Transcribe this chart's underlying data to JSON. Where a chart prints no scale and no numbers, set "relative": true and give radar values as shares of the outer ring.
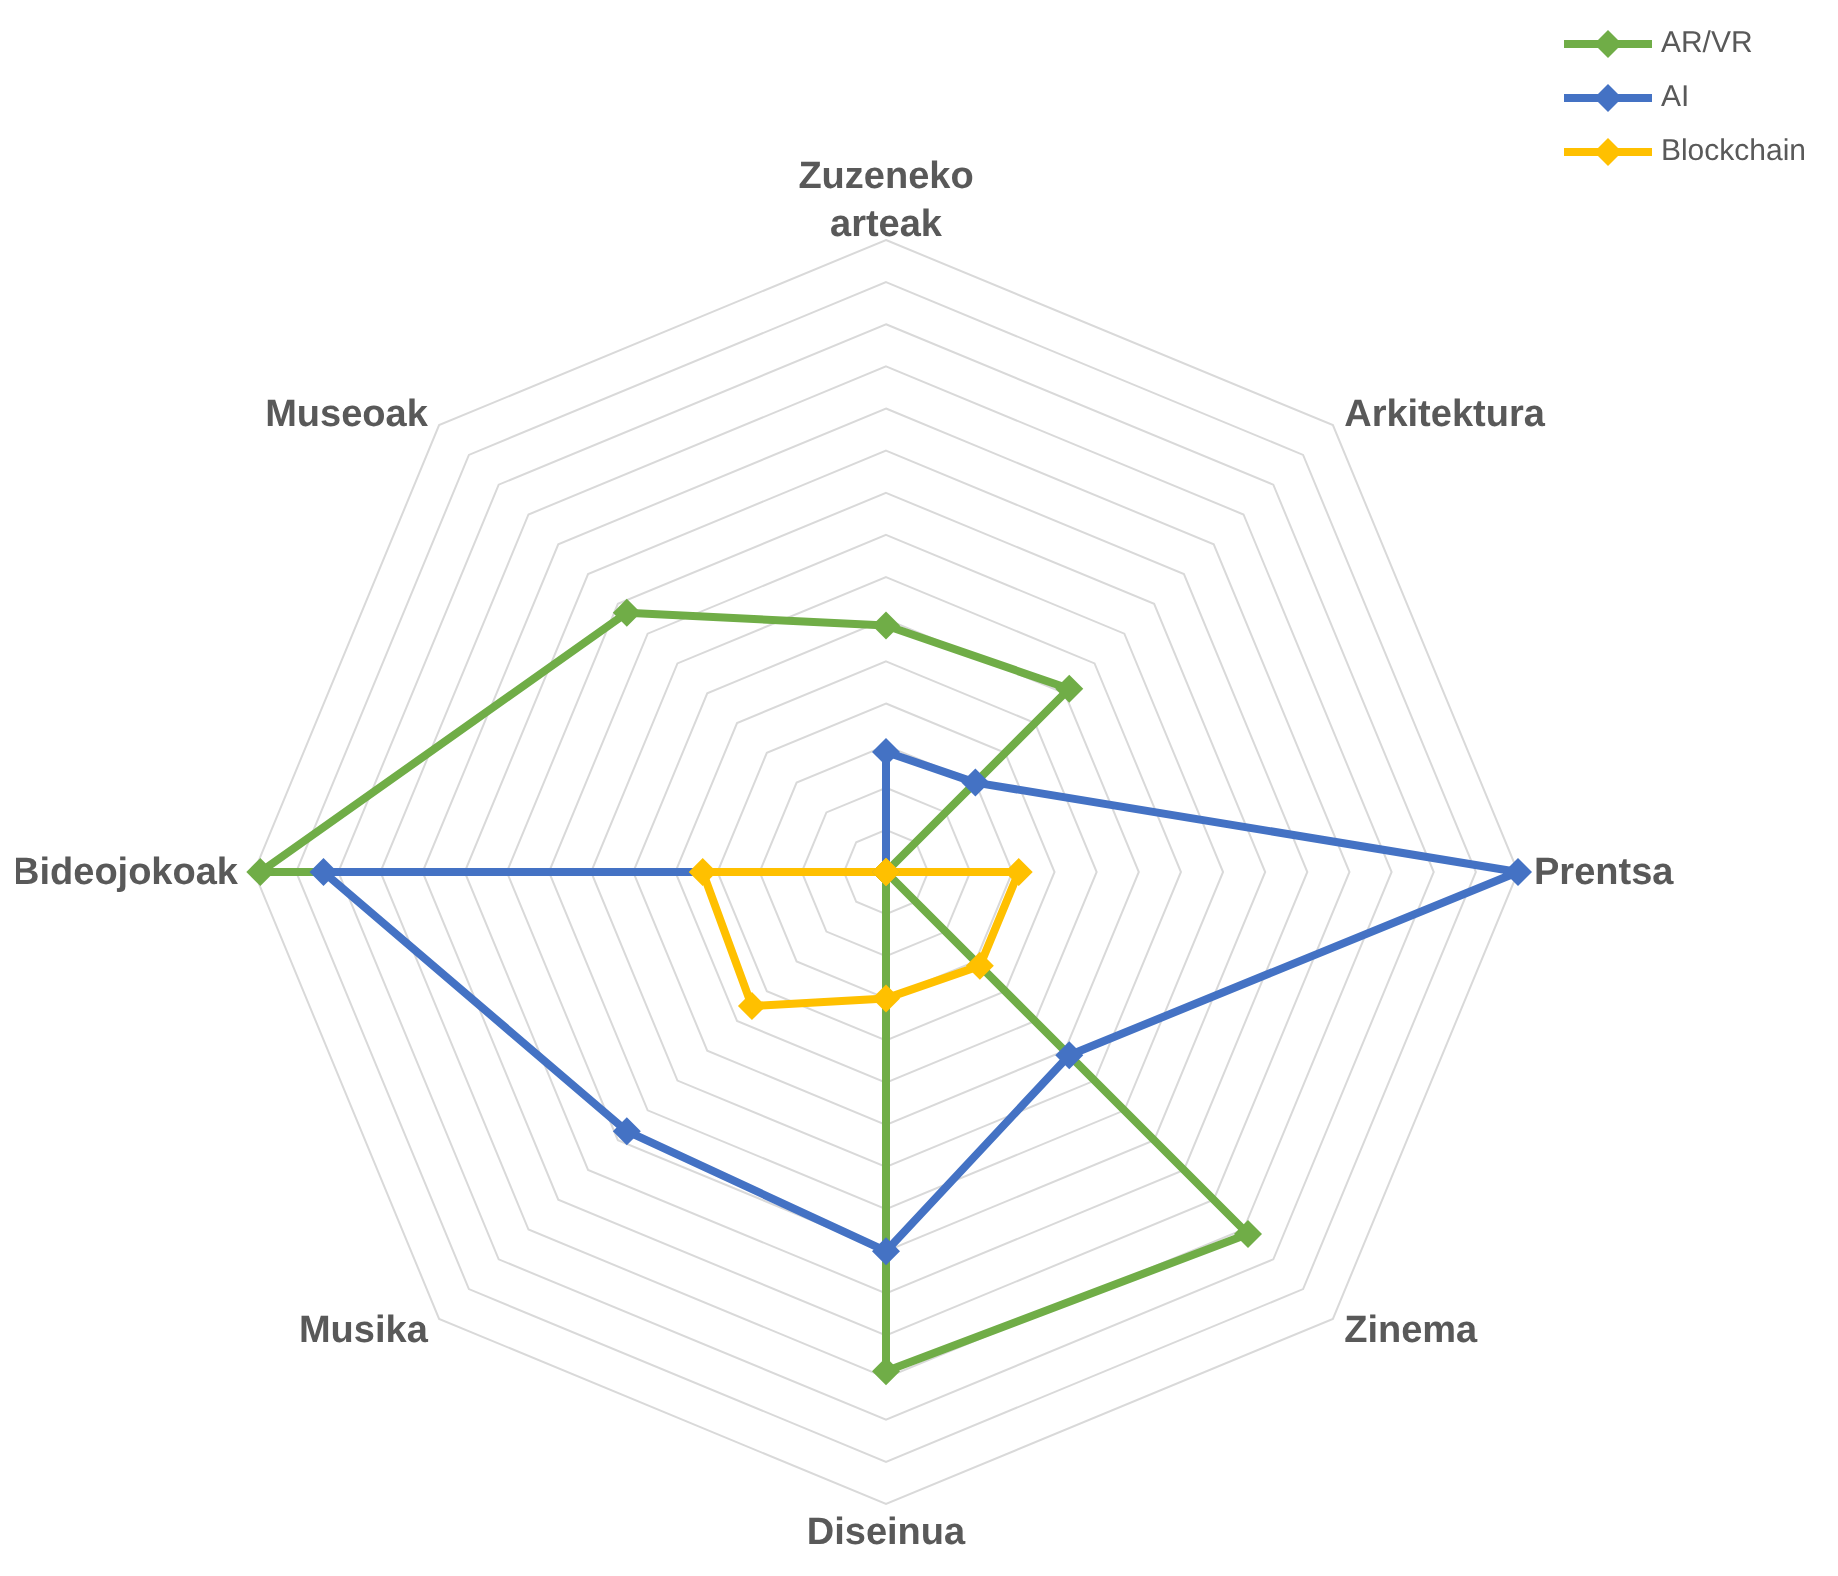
{
  "chart_data": {
    "type": "radar",
    "relative": true,
    "categories": [
      "Zuzeneko arteak",
      "Arkitektura",
      "Prentsa",
      "Zinema",
      "Diseinua",
      "Musika",
      "Bideojokoak",
      "Museoak"
    ],
    "series": [
      {
        "name": "AR/VR",
        "color": "#70ad47",
        "values": [
          0.39,
          0.41,
          0,
          0.81,
          0.79,
          0,
          0.99,
          0.58
        ]
      },
      {
        "name": "AI",
        "color": "#4472c4",
        "values": [
          0.19,
          0.2,
          1,
          0.41,
          0.6,
          0.58,
          0.89,
          0
        ]
      },
      {
        "name": "Blockchain",
        "color": "#ffc000",
        "values": [
          0,
          0,
          0.21,
          0.21,
          0.2,
          0.3,
          0.29,
          0
        ]
      }
    ],
    "grid": true,
    "legend": "top right",
    "marker": "diamond",
    "line_style": "solid"
  }
}
